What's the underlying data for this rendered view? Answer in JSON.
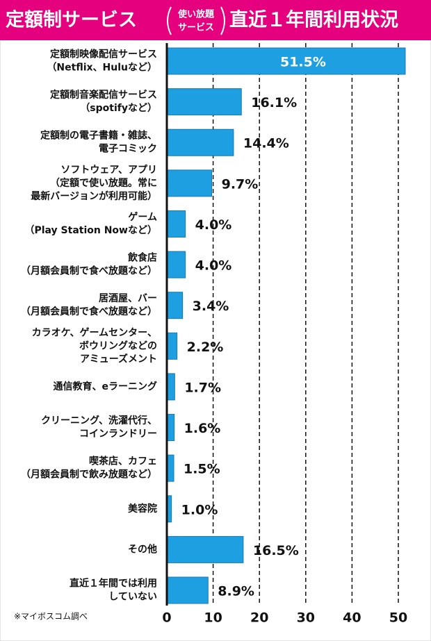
{
  "chart_data": {
    "type": "bar",
    "orientation": "horizontal",
    "title": {
      "main": "定額制サービス",
      "sub": [
        "使い放題",
        "サービス"
      ],
      "tail": "直近１年間利用状況"
    },
    "categories": [
      [
        "定額制映像配信サービス",
        "（Netflix、Huluなど）"
      ],
      [
        "定額制音楽配信サービス",
        "（spotifyなど）"
      ],
      [
        "定額制の電子書籍・雑誌、",
        "電子コミック"
      ],
      [
        "ソフトウェア、アプリ",
        "（定額で使い放題。常に",
        "最新バージョンが利用可能）"
      ],
      [
        "ゲーム",
        "（Play Station Nowなど）"
      ],
      [
        "飲食店",
        "（月額会員制で食べ放題など）"
      ],
      [
        "居酒屋、バー",
        "（月額会員制で食べ放題など）"
      ],
      [
        "カラオケ、ゲームセンター、",
        "ボウリングなどの",
        "アミューズメント"
      ],
      [
        "通信教育、eラーニング"
      ],
      [
        "クリーニング、洗濯代行、",
        "コインランドリー"
      ],
      [
        "喫茶店、カフェ",
        "（月額会員制で飲み放題など）"
      ],
      [
        "美容院"
      ],
      [
        "その他"
      ],
      [
        "直近１年間では利用",
        "していない"
      ]
    ],
    "values": [
      51.5,
      16.1,
      14.4,
      9.7,
      4.0,
      4.0,
      3.4,
      2.2,
      1.7,
      1.6,
      1.5,
      1.0,
      16.5,
      8.9
    ],
    "value_labels": [
      "51.5%",
      "16.1%",
      "14.4%",
      "9.7%",
      "4.0%",
      "4.0%",
      "3.4%",
      "2.2%",
      "1.7%",
      "1.6%",
      "1.5%",
      "1.0%",
      "16.5%",
      "8.9%"
    ],
    "color": "#1e9fe2",
    "xlim": [
      0,
      50
    ],
    "xticks": [
      0,
      10,
      20,
      30,
      40,
      50
    ],
    "grid": true,
    "source": "※マイボスコム調べ"
  }
}
